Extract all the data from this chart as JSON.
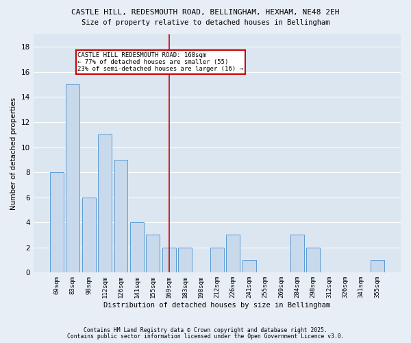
{
  "title": "CASTLE HILL, REDESMOUTH ROAD, BELLINGHAM, HEXHAM, NE48 2EH",
  "subtitle": "Size of property relative to detached houses in Bellingham",
  "xlabel": "Distribution of detached houses by size in Bellingham",
  "ylabel": "Number of detached properties",
  "categories": [
    "69sqm",
    "83sqm",
    "98sqm",
    "112sqm",
    "126sqm",
    "141sqm",
    "155sqm",
    "169sqm",
    "183sqm",
    "198sqm",
    "212sqm",
    "226sqm",
    "241sqm",
    "255sqm",
    "269sqm",
    "284sqm",
    "298sqm",
    "312sqm",
    "326sqm",
    "341sqm",
    "355sqm"
  ],
  "values": [
    8,
    15,
    6,
    11,
    9,
    4,
    3,
    2,
    2,
    0,
    2,
    3,
    1,
    0,
    0,
    3,
    2,
    0,
    0,
    0,
    1
  ],
  "bar_color": "#c8d9ec",
  "bar_edge_color": "#5b9bd5",
  "vline_x": 7,
  "vline_color": "#cc0000",
  "annotation_text": "CASTLE HILL REDESMOUTH ROAD: 168sqm\n← 77% of detached houses are smaller (55)\n23% of semi-detached houses are larger (16) →",
  "annotation_box_color": "#cc0000",
  "ylim": [
    0,
    19
  ],
  "yticks": [
    0,
    2,
    4,
    6,
    8,
    10,
    12,
    14,
    16,
    18
  ],
  "fig_bg": "#e8eef5",
  "ax_bg": "#dce6f0",
  "grid_color": "#ffffff",
  "footer1": "Contains HM Land Registry data © Crown copyright and database right 2025.",
  "footer2": "Contains public sector information licensed under the Open Government Licence v3.0."
}
